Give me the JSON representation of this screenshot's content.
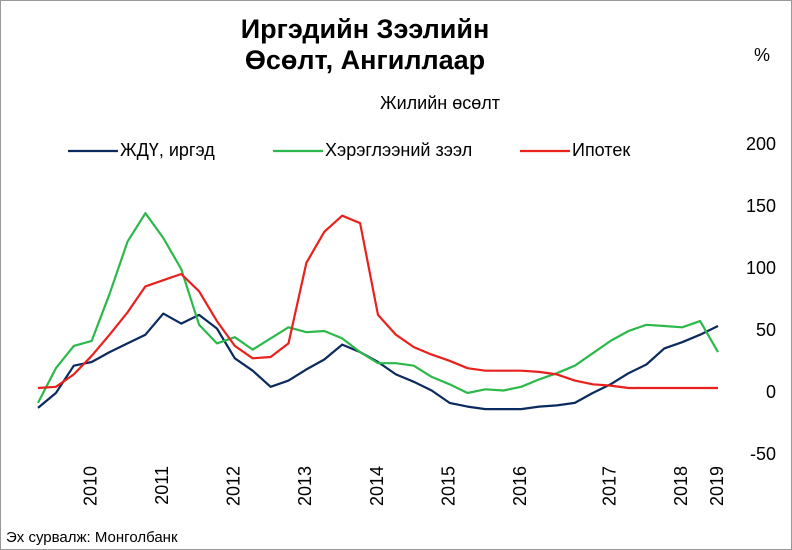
{
  "chart_data": {
    "type": "line",
    "title": "Иргэдийн Зээлийн Өсөлт, Ангиллаар",
    "subtitle": "Жилийн өсөлт",
    "y_axis_label": "%",
    "source": "Эх сурвалж: Монголбанк",
    "categories": [
      null,
      null,
      null,
      "2010",
      null,
      null,
      null,
      "2011",
      null,
      null,
      null,
      "2012",
      null,
      null,
      null,
      "2013",
      null,
      null,
      null,
      "2014",
      null,
      null,
      null,
      "2015",
      null,
      null,
      null,
      "2016",
      null,
      null,
      null,
      null,
      "2017",
      null,
      null,
      null,
      "2018",
      null,
      "2019"
    ],
    "series": [
      {
        "name": "ЖДҮ, иргэд",
        "color": "#0b2a5e",
        "values": [
          -12,
          0,
          22,
          25,
          33,
          40,
          47,
          64,
          56,
          63,
          52,
          28,
          18,
          5,
          10,
          19,
          27,
          39,
          33,
          25,
          15,
          9,
          2,
          -8,
          -11,
          -13,
          -13,
          -13,
          -11,
          -10,
          -8,
          0,
          7,
          16,
          23,
          36,
          41,
          47,
          54
        ]
      },
      {
        "name": "Хэрэглээний зээл",
        "color": "#2db84b",
        "values": [
          -8,
          20,
          38,
          42,
          80,
          122,
          145,
          125,
          100,
          55,
          40,
          45,
          35,
          44,
          53,
          49,
          50,
          44,
          33,
          24,
          24,
          22,
          13,
          7,
          0,
          3,
          2,
          5,
          11,
          16,
          22,
          32,
          42,
          50,
          55,
          54,
          53,
          58,
          33
        ]
      },
      {
        "name": "Ипотек",
        "color": "#e8211d",
        "values": [
          4,
          5,
          15,
          30,
          47,
          65,
          86,
          91,
          96,
          82,
          58,
          38,
          28,
          29,
          40,
          105,
          130,
          143,
          137,
          63,
          47,
          37,
          31,
          26,
          20,
          18,
          18,
          18,
          17,
          15,
          10,
          7,
          6,
          4,
          4,
          4,
          4,
          4,
          4
        ]
      }
    ],
    "ylim": [
      -50,
      200
    ],
    "yticks": [
      -50,
      0,
      50,
      100,
      150,
      200
    ],
    "legend": "top"
  }
}
